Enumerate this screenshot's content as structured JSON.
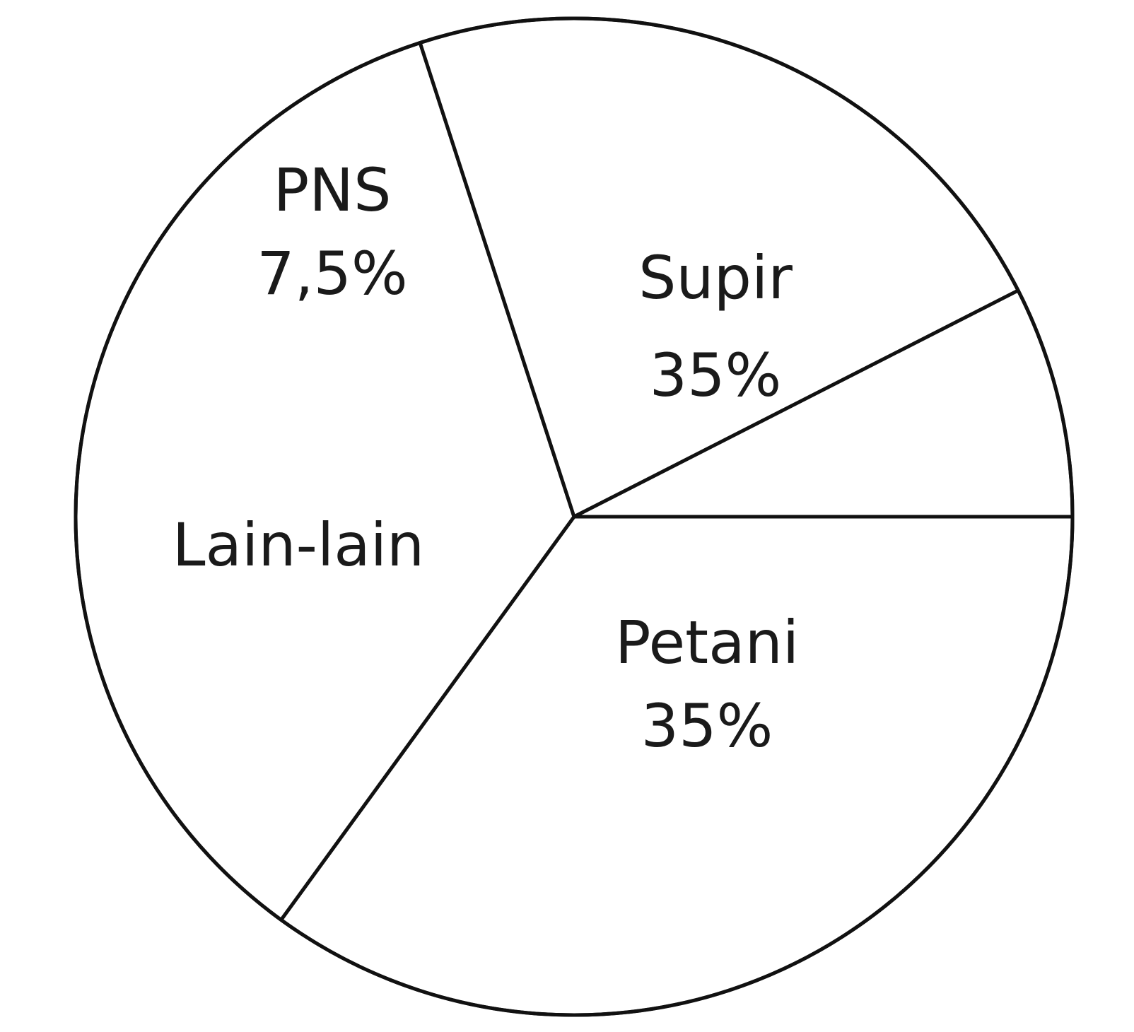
{
  "chart_data": {
    "type": "pie",
    "slices": [
      {
        "label": "Supir",
        "value_text": "35%",
        "value": 35
      },
      {
        "label": "Petani",
        "value_text": "35%",
        "value": 35
      },
      {
        "label": "Lain-lain",
        "value_text": "",
        "value": 22.5
      },
      {
        "label": "PNS",
        "value_text": "7,5%",
        "value": 7.5
      }
    ],
    "start_direction": "right",
    "direction": "clockwise",
    "colors": {
      "fill": "#ffffff",
      "stroke": "#111111"
    }
  }
}
